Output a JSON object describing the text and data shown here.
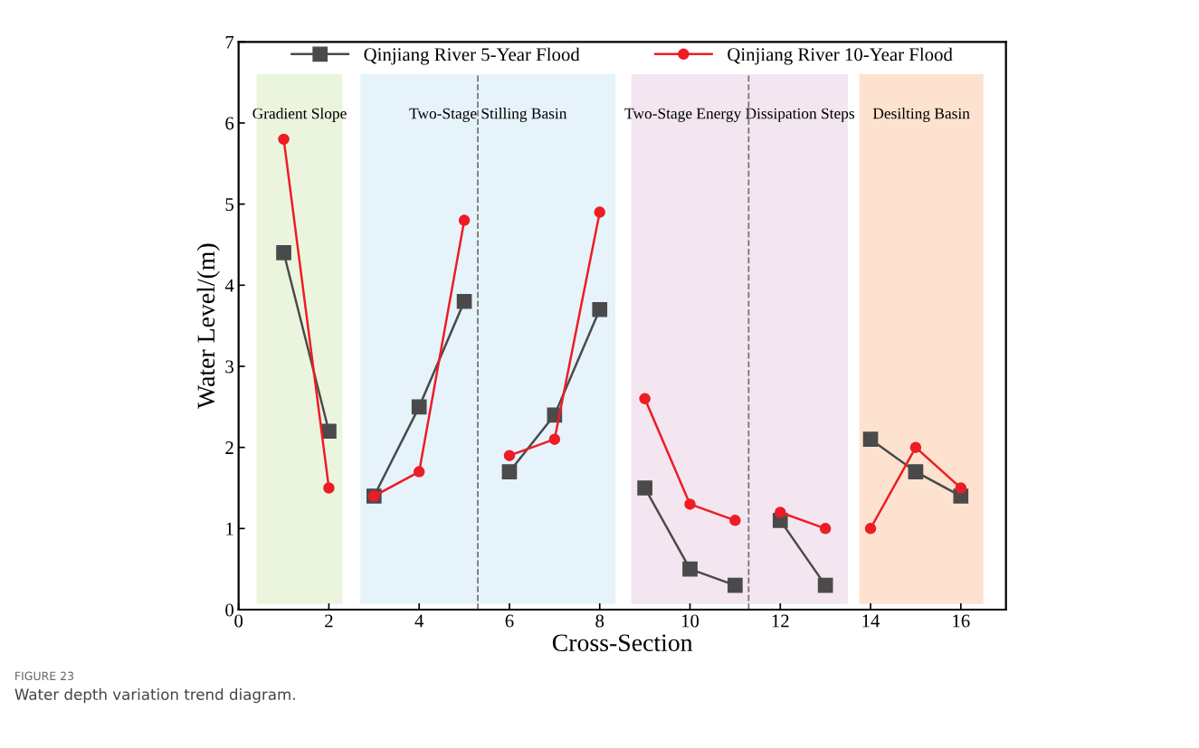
{
  "chart_data": {
    "type": "line",
    "xlabel": "Cross-Section",
    "ylabel": "Water Level/(m)",
    "x": [
      1,
      2,
      2.5,
      3,
      4,
      5,
      5.5,
      6,
      7,
      8,
      8.5,
      9,
      10,
      11,
      11.5,
      12,
      13,
      13.5,
      14,
      15,
      16
    ],
    "series": [
      {
        "name": "Qinjiang River 5-Year Flood",
        "color": "#4a4a4a",
        "marker": "square",
        "values": [
          4.4,
          2.2,
          null,
          1.4,
          2.5,
          3.8,
          null,
          1.7,
          2.4,
          3.7,
          null,
          1.5,
          0.5,
          0.3,
          null,
          1.1,
          0.3,
          null,
          2.1,
          1.7,
          1.4
        ]
      },
      {
        "name": "Qinjiang River 10-Year Flood",
        "color": "#ee1c25",
        "marker": "circle",
        "values": [
          5.8,
          1.5,
          null,
          1.4,
          1.7,
          4.8,
          null,
          1.9,
          2.1,
          4.9,
          null,
          2.6,
          1.3,
          1.1,
          null,
          1.2,
          1.0,
          null,
          1.0,
          2.0,
          1.5
        ]
      }
    ],
    "xlim": [
      0,
      17
    ],
    "xticks": [
      0,
      2,
      4,
      6,
      8,
      10,
      12,
      14,
      16
    ],
    "ylim": [
      0,
      7
    ],
    "yticks": [
      0,
      1,
      2,
      3,
      4,
      5,
      6,
      7
    ],
    "bands": [
      {
        "axis": "x",
        "from": 0.4,
        "to": 2.3,
        "label": "Gradient Slope",
        "color": "#ebf5de"
      },
      {
        "axis": "x",
        "from": 2.7,
        "to": 8.35,
        "label": "Two-Stage Stilling Basin",
        "color": "#e6f3fb"
      },
      {
        "axis": "x",
        "from": 8.7,
        "to": 13.5,
        "label": "Two-Stage Energy Dissipation Steps",
        "color": "#f3e6f0"
      },
      {
        "axis": "x",
        "from": 13.75,
        "to": 16.5,
        "label": "Desilting Basin",
        "color": "#fde3cf"
      }
    ],
    "ref_lines": [
      {
        "axis": "x",
        "value": 5.3,
        "color": "#777777",
        "line_style": "dashed"
      },
      {
        "axis": "x",
        "value": 11.3,
        "color": "#777777",
        "line_style": "dashed"
      }
    ],
    "legend": "top",
    "grid": false,
    "line_style": "solid",
    "annotations": [
      "FIGURE 23",
      "Water depth variation trend diagram."
    ]
  }
}
